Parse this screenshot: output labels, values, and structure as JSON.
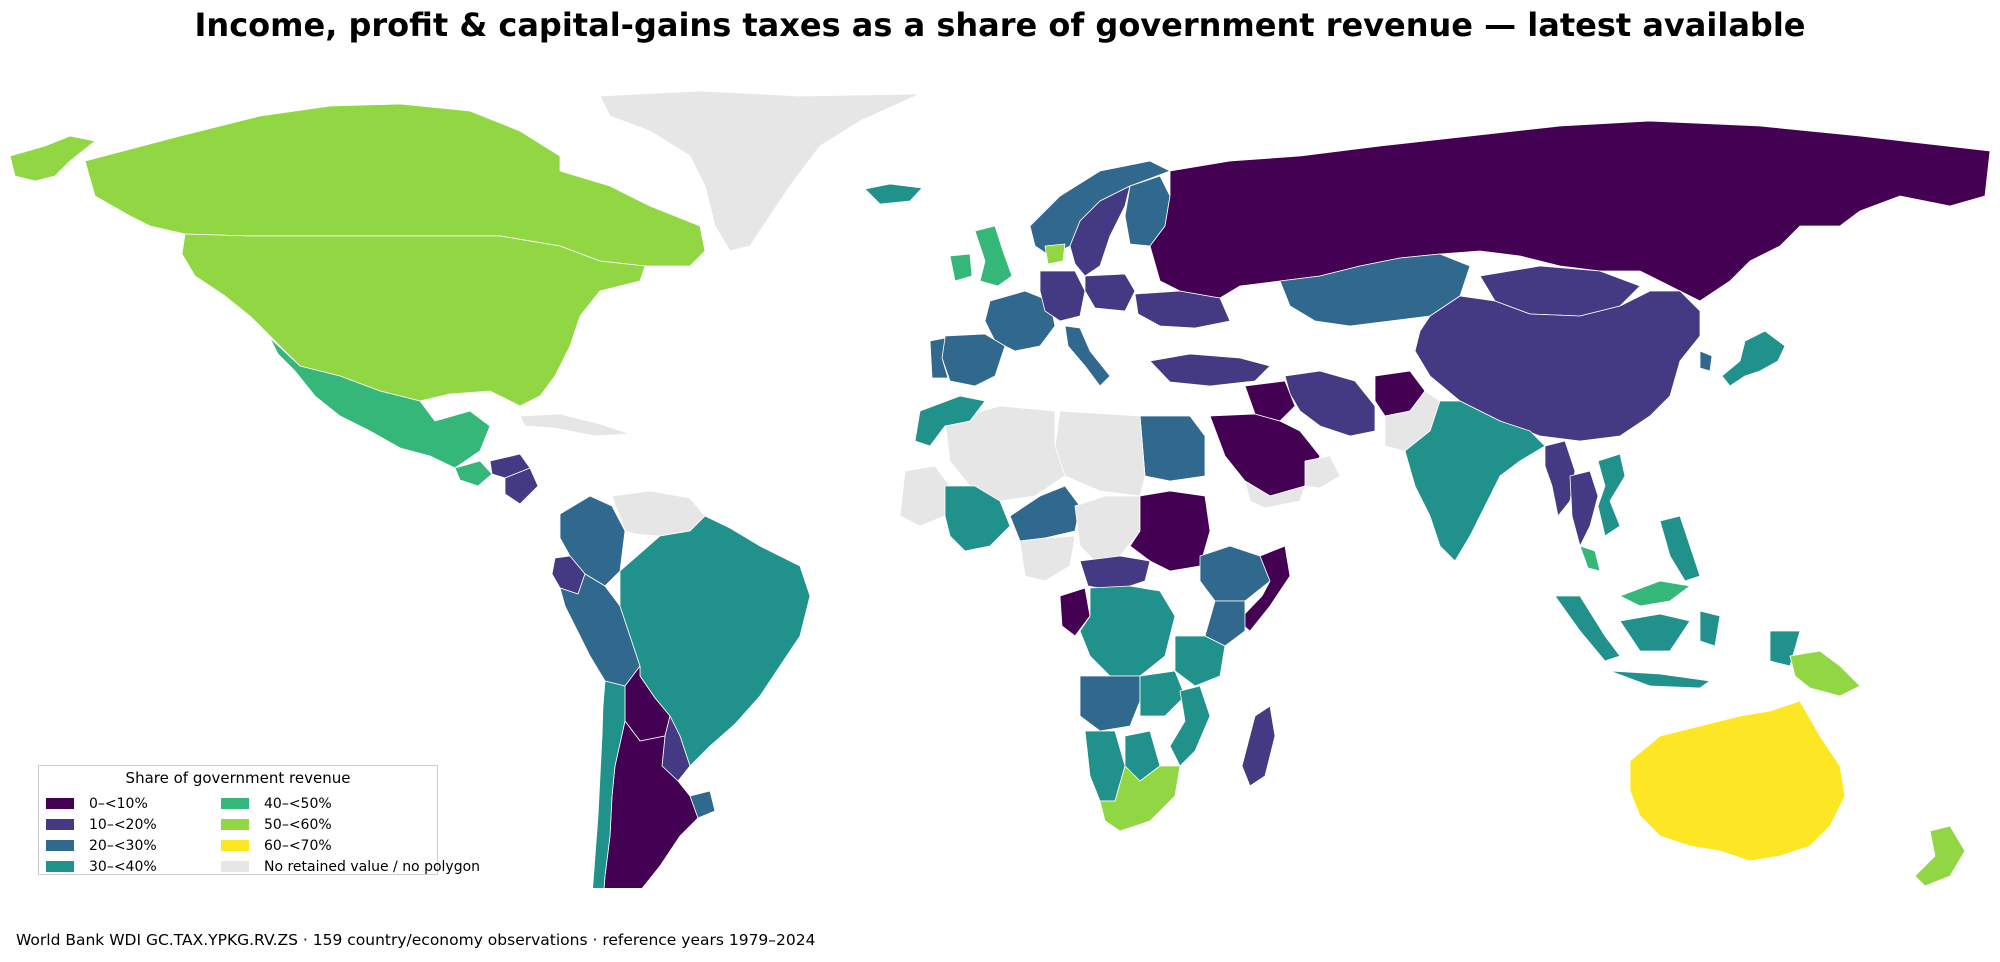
{
  "title": "Income, profit & capital-gains taxes as a share of government revenue — latest available",
  "footer": "World Bank WDI GC.TAX.YPKG.RV.ZS · 159 country/economy observations · reference years 1979–2024",
  "legend": {
    "title": "Share of government revenue",
    "placement": "lower-left",
    "items": [
      {
        "label": "0–<10%",
        "color": "#440154"
      },
      {
        "label": "10–<20%",
        "color": "#443983"
      },
      {
        "label": "20–<30%",
        "color": "#31688e"
      },
      {
        "label": "30–<40%",
        "color": "#21918c"
      },
      {
        "label": "40–<50%",
        "color": "#35b779"
      },
      {
        "label": "50–<60%",
        "color": "#90d743"
      },
      {
        "label": "60–<70%",
        "color": "#fde725"
      },
      {
        "label": "No retained value / no polygon",
        "color": "#e6e6e6"
      }
    ]
  },
  "map": {
    "projection": "equirectangular",
    "regions": [
      {
        "name": "Canada",
        "bin": 5
      },
      {
        "name": "United States",
        "bin": 5
      },
      {
        "name": "Alaska",
        "bin": 5
      },
      {
        "name": "Mexico",
        "bin": 4
      },
      {
        "name": "Guatemala",
        "bin": 4
      },
      {
        "name": "Honduras",
        "bin": 1
      },
      {
        "name": "Nicaragua",
        "bin": 1
      },
      {
        "name": "Cuba",
        "bin": 7
      },
      {
        "name": "Colombia",
        "bin": 2
      },
      {
        "name": "Venezuela",
        "bin": 7
      },
      {
        "name": "Ecuador",
        "bin": 1
      },
      {
        "name": "Peru",
        "bin": 2
      },
      {
        "name": "Brazil",
        "bin": 3
      },
      {
        "name": "Bolivia",
        "bin": 0
      },
      {
        "name": "Paraguay",
        "bin": 1
      },
      {
        "name": "Argentina",
        "bin": 0
      },
      {
        "name": "Chile",
        "bin": 3
      },
      {
        "name": "Uruguay",
        "bin": 2
      },
      {
        "name": "Greenland",
        "bin": 7
      },
      {
        "name": "Iceland",
        "bin": 3
      },
      {
        "name": "United Kingdom",
        "bin": 4
      },
      {
        "name": "Ireland",
        "bin": 4
      },
      {
        "name": "Norway",
        "bin": 2
      },
      {
        "name": "Sweden",
        "bin": 1
      },
      {
        "name": "Finland",
        "bin": 2
      },
      {
        "name": "Denmark",
        "bin": 5
      },
      {
        "name": "France",
        "bin": 2
      },
      {
        "name": "Spain",
        "bin": 2
      },
      {
        "name": "Portugal",
        "bin": 2
      },
      {
        "name": "Germany",
        "bin": 1
      },
      {
        "name": "Italy",
        "bin": 2
      },
      {
        "name": "Poland",
        "bin": 1
      },
      {
        "name": "Ukraine",
        "bin": 1
      },
      {
        "name": "Turkey",
        "bin": 1
      },
      {
        "name": "Russia",
        "bin": 0
      },
      {
        "name": "Kazakhstan",
        "bin": 2
      },
      {
        "name": "Mongolia",
        "bin": 1
      },
      {
        "name": "China",
        "bin": 1
      },
      {
        "name": "Japan",
        "bin": 3
      },
      {
        "name": "South Korea",
        "bin": 2
      },
      {
        "name": "Iran",
        "bin": 1
      },
      {
        "name": "Afghanistan",
        "bin": 0
      },
      {
        "name": "Pakistan",
        "bin": 7
      },
      {
        "name": "India",
        "bin": 3
      },
      {
        "name": "Myanmar",
        "bin": 1
      },
      {
        "name": "Thailand",
        "bin": 1
      },
      {
        "name": "Vietnam",
        "bin": 3
      },
      {
        "name": "Malaysia",
        "bin": 4
      },
      {
        "name": "Indonesia",
        "bin": 3
      },
      {
        "name": "Philippines",
        "bin": 3
      },
      {
        "name": "Papua New Guinea",
        "bin": 5
      },
      {
        "name": "Australia",
        "bin": 6
      },
      {
        "name": "New Zealand",
        "bin": 5
      },
      {
        "name": "Saudi Arabia",
        "bin": 0
      },
      {
        "name": "Iraq",
        "bin": 0
      },
      {
        "name": "Yemen",
        "bin": 7
      },
      {
        "name": "Oman",
        "bin": 7
      },
      {
        "name": "Egypt",
        "bin": 2
      },
      {
        "name": "Libya",
        "bin": 7
      },
      {
        "name": "Algeria",
        "bin": 7
      },
      {
        "name": "Morocco",
        "bin": 3
      },
      {
        "name": "Mauritania",
        "bin": 7
      },
      {
        "name": "Mali",
        "bin": 3
      },
      {
        "name": "Niger",
        "bin": 2
      },
      {
        "name": "Chad",
        "bin": 7
      },
      {
        "name": "Sudan",
        "bin": 0
      },
      {
        "name": "Ethiopia",
        "bin": 2
      },
      {
        "name": "Somalia",
        "bin": 0
      },
      {
        "name": "Nigeria",
        "bin": 7
      },
      {
        "name": "Central African Republic",
        "bin": 1
      },
      {
        "name": "DR Congo",
        "bin": 3
      },
      {
        "name": "Congo",
        "bin": 0
      },
      {
        "name": "Kenya",
        "bin": 2
      },
      {
        "name": "Tanzania",
        "bin": 3
      },
      {
        "name": "Angola",
        "bin": 2
      },
      {
        "name": "Zambia",
        "bin": 3
      },
      {
        "name": "Namibia",
        "bin": 3
      },
      {
        "name": "Botswana",
        "bin": 3
      },
      {
        "name": "Mozambique",
        "bin": 3
      },
      {
        "name": "South Africa",
        "bin": 5
      },
      {
        "name": "Madagascar",
        "bin": 1
      }
    ]
  }
}
